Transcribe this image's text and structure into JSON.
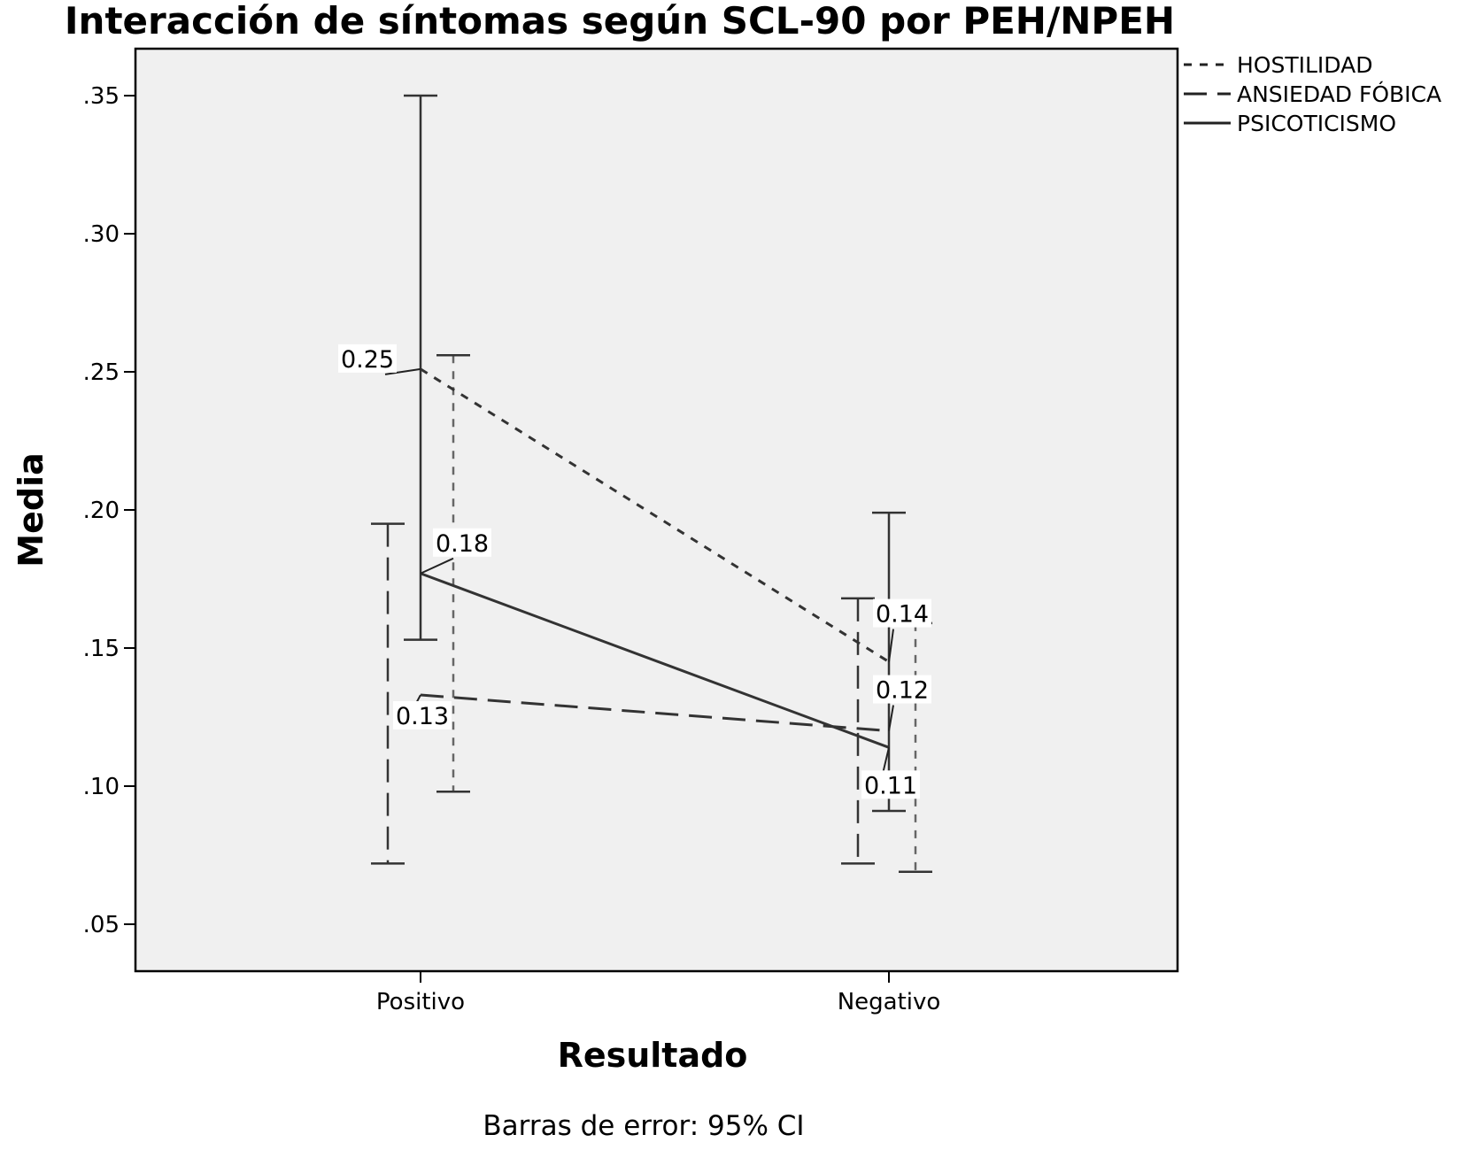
{
  "chart_data": {
    "type": "line",
    "title": "Interacción de síntomas según SCL-90 por PEH/NPEH",
    "xlabel": "Resultado",
    "ylabel": "Media",
    "categories": [
      "Positivo",
      "Negativo"
    ],
    "ylim": [
      0.033,
      0.367
    ],
    "yticks": [
      0.05,
      0.1,
      0.15,
      0.2,
      0.25,
      0.3,
      0.35
    ],
    "ytick_labels": [
      ".05",
      ".10",
      ".15",
      ".20",
      ".25",
      ".30",
      ".35"
    ],
    "grid": false,
    "legend_position": "top-right, outside plot",
    "plot_background": "#f0f0f0",
    "note": "Barras de error: 95% CI",
    "series": [
      {
        "name": "HOSTILIDAD",
        "line_style": "short-dash",
        "values": [
          0.251,
          0.145
        ],
        "ci_lower": [
          0.098,
          0.069
        ],
        "ci_upper": [
          0.256,
          0.159
        ],
        "labels": [
          "0.25",
          "0.14"
        ]
      },
      {
        "name": "ANSIEDAD FÓBICA",
        "line_style": "long-dash",
        "values": [
          0.133,
          0.12
        ],
        "ci_lower": [
          0.072,
          0.072
        ],
        "ci_upper": [
          0.195,
          0.168
        ],
        "labels": [
          "0.13",
          "0.12"
        ]
      },
      {
        "name": "PSICOTICISMO",
        "line_style": "solid",
        "values": [
          0.177,
          0.114
        ],
        "ci_lower": [
          0.153,
          0.091
        ],
        "ci_upper": [
          0.35,
          0.199
        ],
        "labels": [
          "0.18",
          "0.11"
        ]
      }
    ]
  }
}
